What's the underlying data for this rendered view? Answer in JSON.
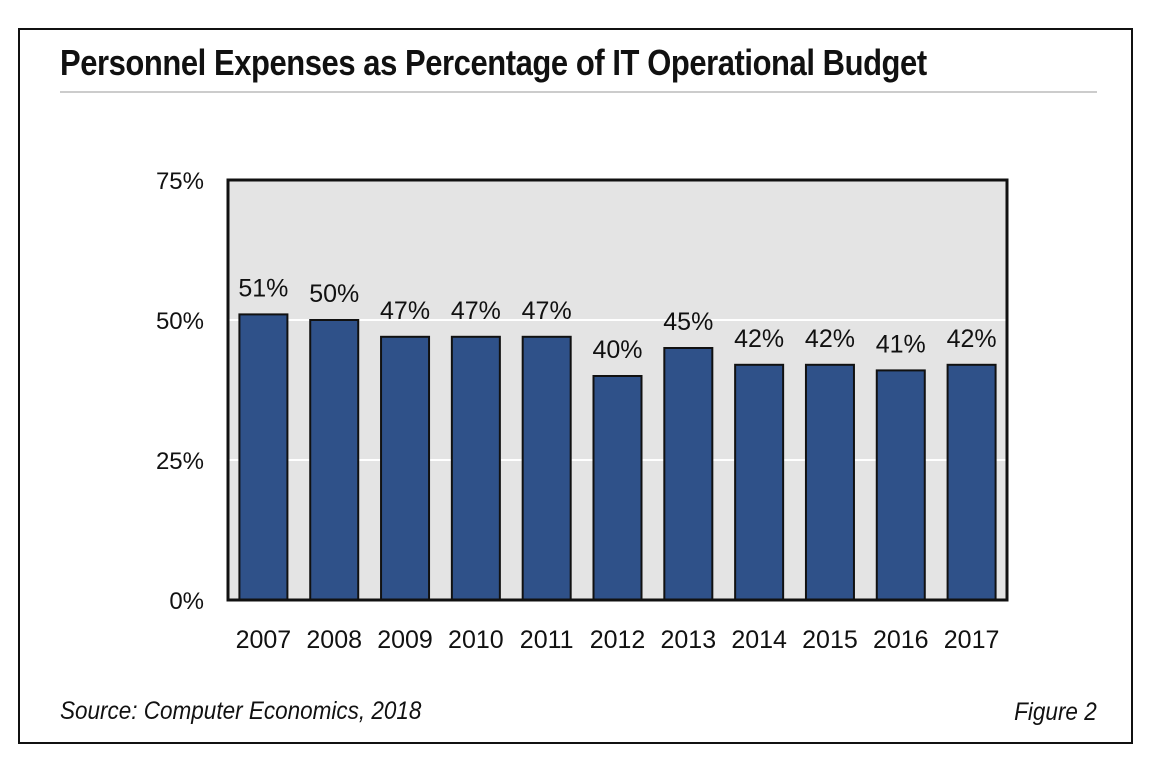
{
  "chart_data": {
    "type": "bar",
    "title": "Personnel Expenses as Percentage of IT Operational Budget",
    "categories": [
      "2007",
      "2008",
      "2009",
      "2010",
      "2011",
      "2012",
      "2013",
      "2014",
      "2015",
      "2016",
      "2017"
    ],
    "values": [
      51,
      50,
      47,
      47,
      47,
      40,
      45,
      42,
      42,
      41,
      42
    ],
    "data_labels": [
      "51%",
      "50%",
      "47%",
      "47%",
      "47%",
      "40%",
      "45%",
      "42%",
      "42%",
      "41%",
      "42%"
    ],
    "ylim": [
      0,
      75
    ],
    "yticks": [
      0,
      25,
      50,
      75
    ],
    "ytick_labels": [
      "0%",
      "25%",
      "50%",
      "75%"
    ],
    "xlabel": "",
    "ylabel": "",
    "grid": true,
    "colors": {
      "bar": "#2f5189",
      "bar_border": "#111111",
      "plot_bg": "#e4e4e4",
      "grid": "#ffffff"
    }
  },
  "footer": {
    "source": "Source: Computer Economics, 2018",
    "figure": "Figure 2"
  }
}
